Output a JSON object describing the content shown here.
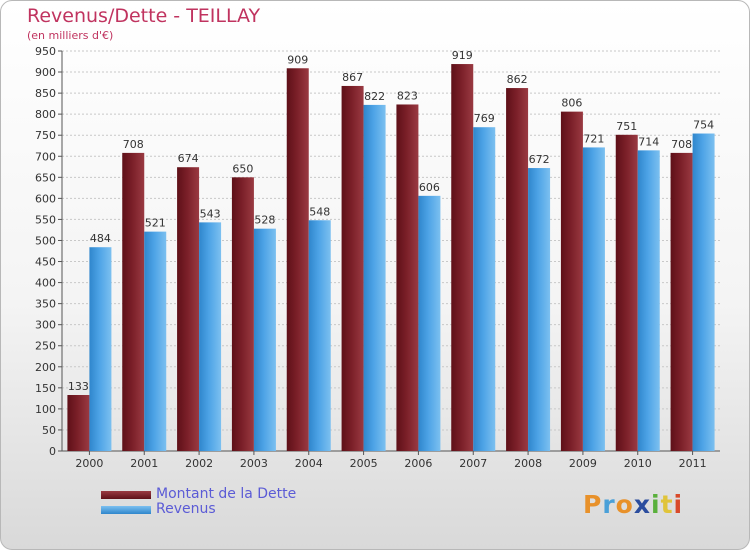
{
  "header": {
    "title": "Revenus/Dette - TEILLAY",
    "subtitle": "(en milliers d'€)"
  },
  "chart_data": {
    "type": "bar",
    "categories": [
      "2000",
      "2001",
      "2002",
      "2003",
      "2004",
      "2005",
      "2006",
      "2007",
      "2008",
      "2009",
      "2010",
      "2011"
    ],
    "series": [
      {
        "name": "Montant de la Dette",
        "values": [
          133,
          708,
          674,
          650,
          909,
          867,
          823,
          919,
          862,
          806,
          751,
          708
        ],
        "color": "#7a1f28"
      },
      {
        "name": "Revenus",
        "values": [
          484,
          521,
          543,
          528,
          548,
          822,
          606,
          769,
          672,
          721,
          714,
          754
        ],
        "color": "#4da3e6"
      }
    ],
    "y_ticks": [
      0,
      50,
      100,
      150,
      200,
      250,
      300,
      350,
      400,
      450,
      500,
      550,
      600,
      650,
      700,
      750,
      800,
      850,
      900,
      950
    ],
    "ylim": [
      0,
      950
    ],
    "grid": true,
    "legend_position": "bottom-left"
  },
  "logo": {
    "letters": [
      "P",
      "r",
      "o",
      "x",
      "i",
      "t",
      "i"
    ],
    "colors": [
      "#e8912a",
      "#4aa0d8",
      "#e8912a",
      "#2b4d9e",
      "#5ab03c",
      "#e0c43a",
      "#d94a2a"
    ]
  }
}
